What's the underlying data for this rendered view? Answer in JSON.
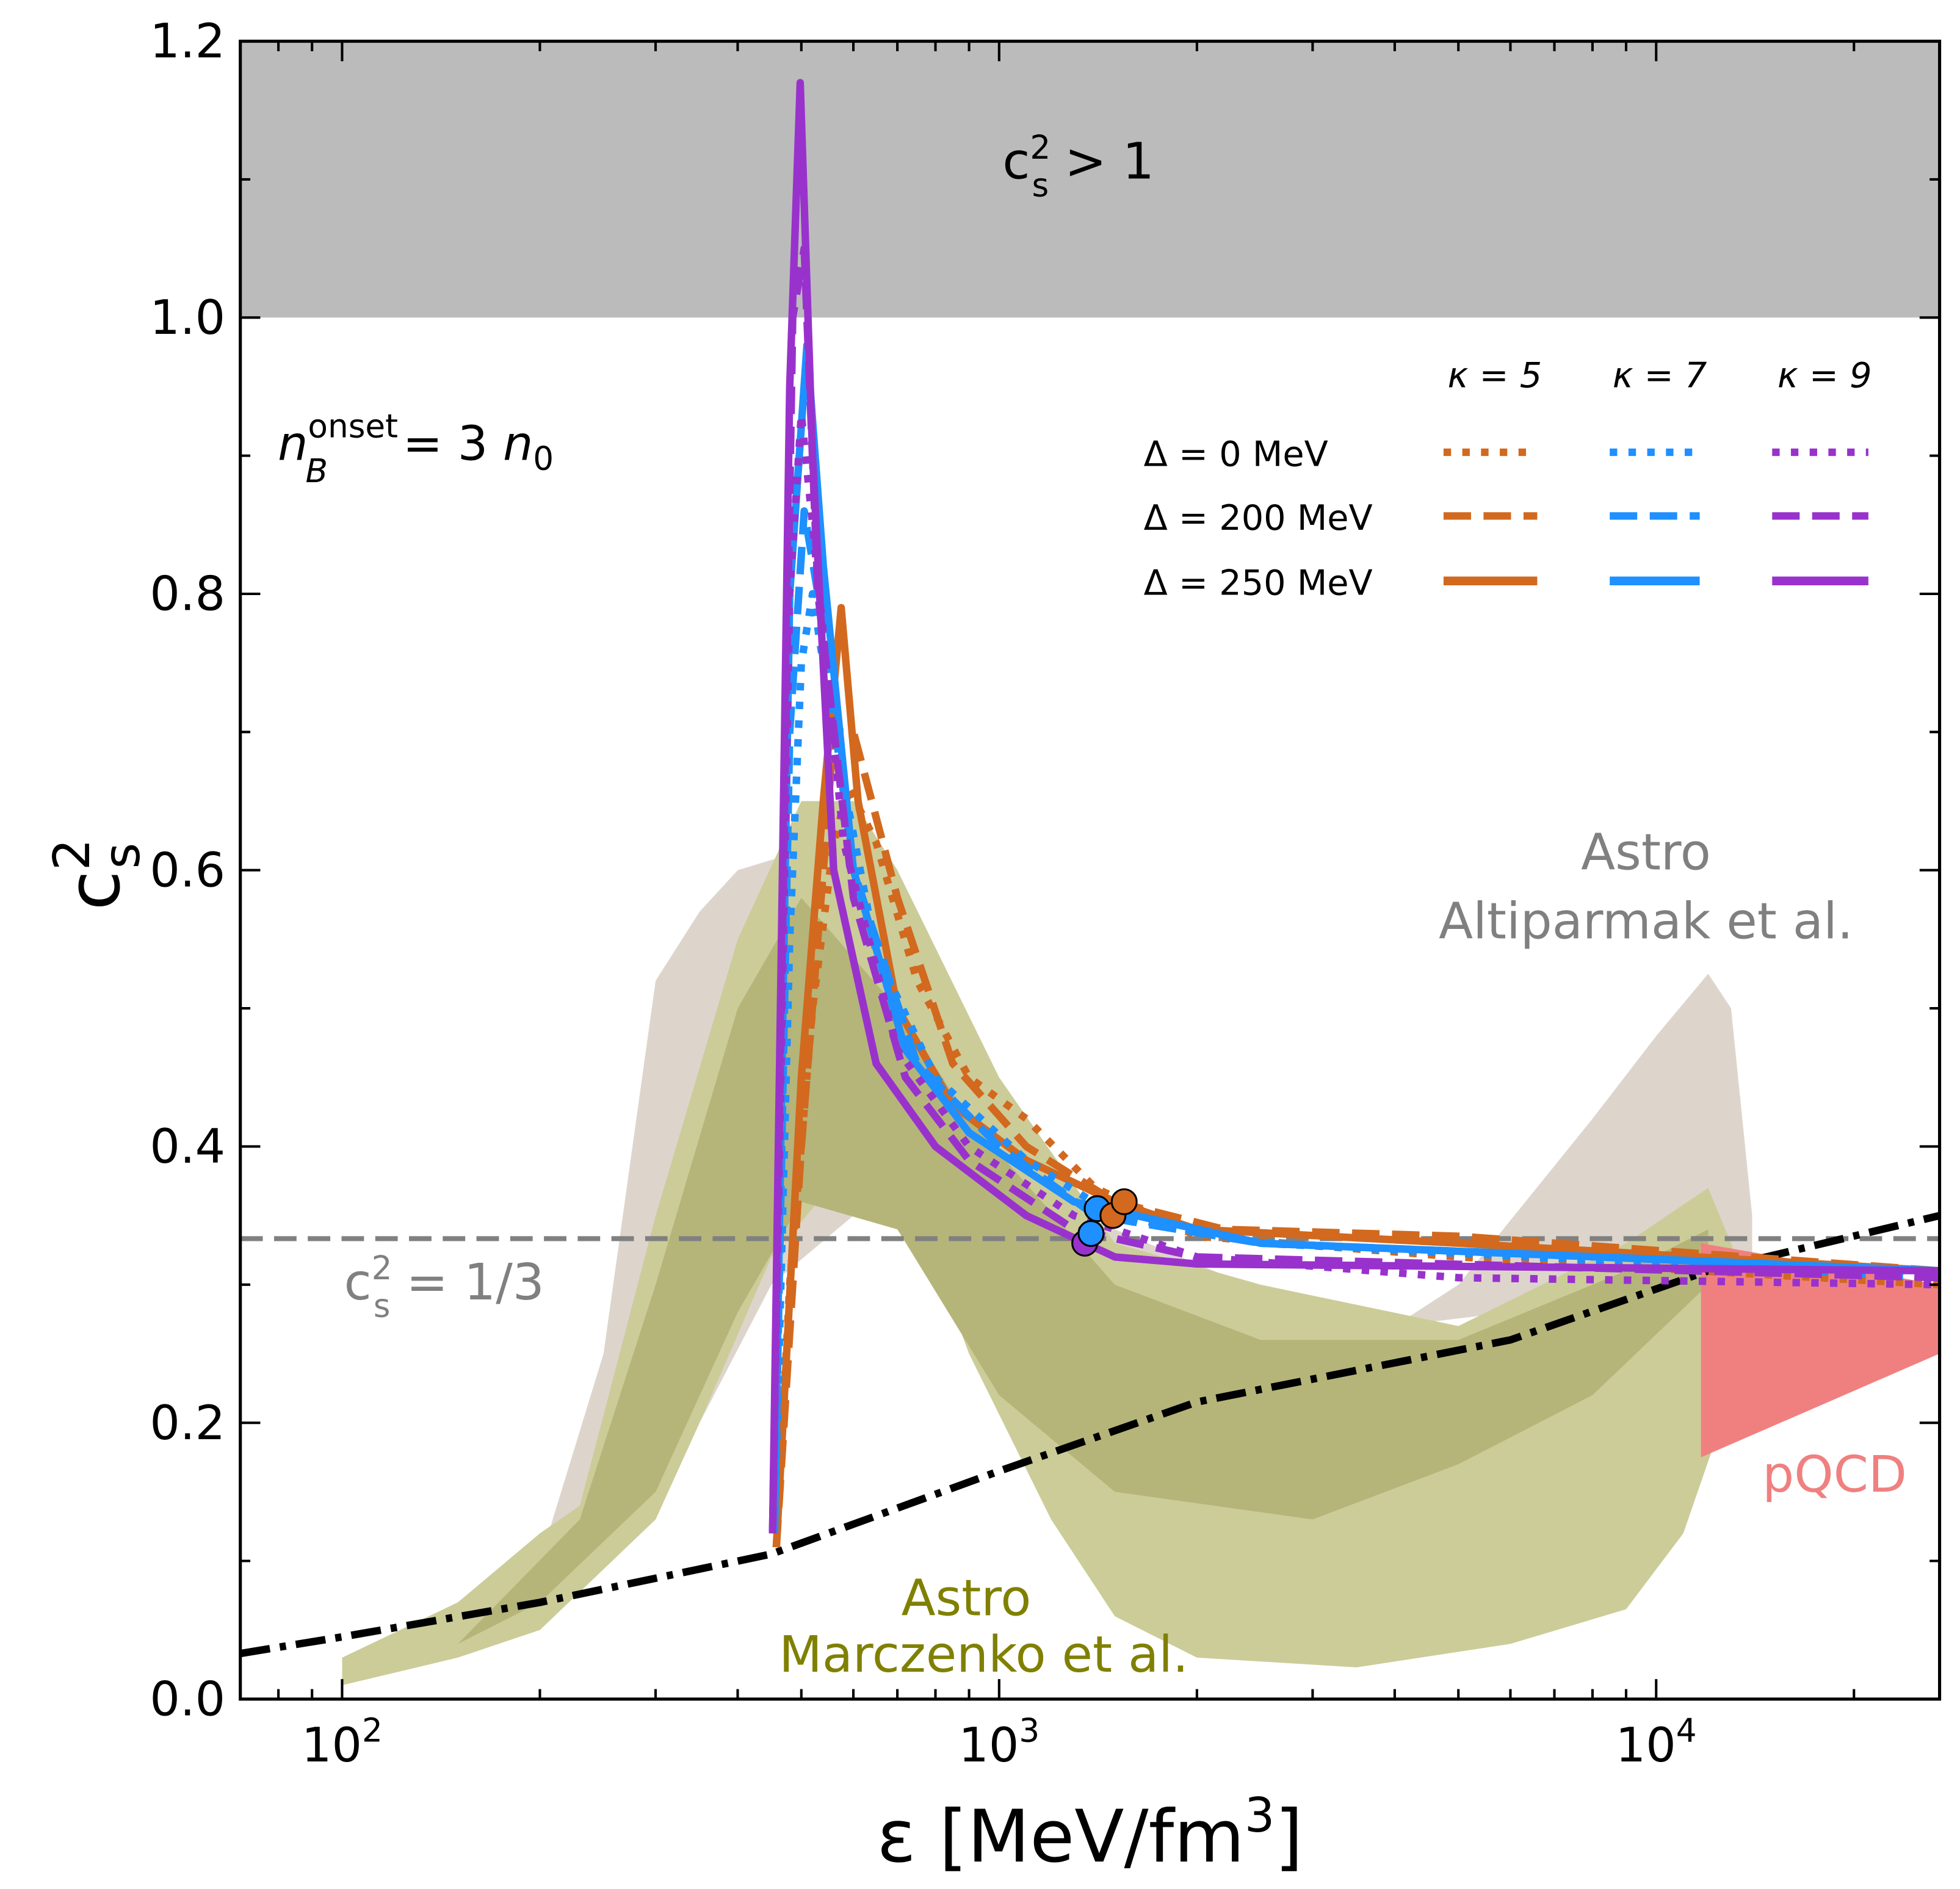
{
  "chart_data": {
    "type": "line",
    "xlabel": "ε [MeV/fm",
    "xlabel_sup": "3",
    "xlabel_end": "]",
    "ylabel": "c",
    "ylabel_sup": "2",
    "ylabel_sub": "s",
    "xscale": "log",
    "xlim": [
      70,
      27000
    ],
    "ylim": [
      0.0,
      1.2
    ],
    "grid": false,
    "x_ticks": [
      {
        "v": 100,
        "base": "10",
        "exp": "2"
      },
      {
        "v": 1000,
        "base": "10",
        "exp": "3"
      },
      {
        "v": 10000,
        "base": "10",
        "exp": "4"
      }
    ],
    "y_ticks": [
      {
        "v": 0,
        "label": "0.0"
      },
      {
        "v": 0.2,
        "label": "0.2"
      },
      {
        "v": 0.4,
        "label": "0.4"
      },
      {
        "v": 0.6,
        "label": "0.6"
      },
      {
        "v": 0.8,
        "label": "0.8"
      },
      {
        "v": 1.0,
        "label": "1.0"
      },
      {
        "v": 1.2,
        "label": "1.2"
      }
    ],
    "annotations": {
      "causal": {
        "c": "c",
        "sup": "2",
        "sub": "s",
        "rest": " > 1"
      },
      "conformal": {
        "c": "c",
        "sup": "2",
        "sub": "s",
        "rest": " = 1/3"
      },
      "onset": {
        "n": "n",
        "sub": "B",
        "sup": "onset",
        "rest": "=  3 ",
        "n0": "n",
        "n0sub": "0"
      },
      "altiparmak": [
        "Astro",
        "Altiparmak et al."
      ],
      "marczenko": [
        "Astro",
        "Marczenko et al."
      ],
      "pqcd": "pQCD"
    },
    "colors": {
      "k5": "#d2691e",
      "k7": "#1e90ff",
      "k9": "#9932cc",
      "altiparmak": "#ddd5cc",
      "marczenko_outer": "#cccc99",
      "marczenko_inner": "#b5b57a",
      "pqcd": "#f08080",
      "marczenko_text": "#808000",
      "gray": "#808080",
      "causal_band": "#bbbbbb"
    },
    "legend": {
      "placement": "top-right",
      "columns": [
        "κ = 5",
        "κ = 7",
        "κ = 9"
      ],
      "rows": [
        "Δ = 0 MeV",
        "Δ = 200 MeV",
        "Δ = 250 MeV"
      ]
    },
    "series": [
      {
        "kappa": 5,
        "delta": 0,
        "style": "dotted",
        "color": "#d2691e",
        "points": [
          [
            458,
            0.11
          ],
          [
            480,
            0.3
          ],
          [
            520,
            0.5
          ],
          [
            560,
            0.62
          ],
          [
            590,
            0.66
          ],
          [
            650,
            0.62
          ],
          [
            750,
            0.52
          ],
          [
            900,
            0.45
          ],
          [
            1100,
            0.42
          ],
          [
            1400,
            0.37
          ],
          [
            2000,
            0.335
          ],
          [
            5000,
            0.32
          ],
          [
            27000,
            0.3
          ]
        ]
      },
      {
        "kappa": 5,
        "delta": 200,
        "style": "dashed",
        "color": "#d2691e",
        "points": [
          [
            458,
            0.11
          ],
          [
            500,
            0.4
          ],
          [
            540,
            0.6
          ],
          [
            560,
            0.7
          ],
          [
            600,
            0.7
          ],
          [
            700,
            0.58
          ],
          [
            850,
            0.46
          ],
          [
            1100,
            0.4
          ],
          [
            1500,
            0.36
          ],
          [
            2200,
            0.34
          ],
          [
            5000,
            0.335
          ],
          [
            27000,
            0.31
          ]
        ]
      },
      {
        "kappa": 5,
        "delta": 250,
        "style": "solid",
        "color": "#d2691e",
        "points": [
          [
            458,
            0.11
          ],
          [
            500,
            0.45
          ],
          [
            540,
            0.65
          ],
          [
            575,
            0.79
          ],
          [
            610,
            0.65
          ],
          [
            700,
            0.5
          ],
          [
            850,
            0.43
          ],
          [
            1100,
            0.39
          ],
          [
            1500,
            0.36
          ],
          [
            2000,
            0.34
          ],
          [
            5000,
            0.33
          ],
          [
            27000,
            0.31
          ]
        ]
      },
      {
        "kappa": 7,
        "delta": 0,
        "style": "dotted",
        "color": "#1e90ff",
        "points": [
          [
            455,
            0.12
          ],
          [
            480,
            0.55
          ],
          [
            500,
            0.75
          ],
          [
            520,
            0.8
          ],
          [
            560,
            0.7
          ],
          [
            650,
            0.54
          ],
          [
            800,
            0.45
          ],
          [
            1100,
            0.39
          ],
          [
            1500,
            0.35
          ],
          [
            2500,
            0.33
          ],
          [
            27000,
            0.305
          ]
        ]
      },
      {
        "kappa": 7,
        "delta": 200,
        "style": "dashed",
        "color": "#1e90ff",
        "points": [
          [
            455,
            0.12
          ],
          [
            480,
            0.7
          ],
          [
            505,
            0.86
          ],
          [
            530,
            0.8
          ],
          [
            600,
            0.6
          ],
          [
            750,
            0.46
          ],
          [
            1000,
            0.4
          ],
          [
            1400,
            0.35
          ],
          [
            2500,
            0.33
          ],
          [
            27000,
            0.31
          ]
        ]
      },
      {
        "kappa": 7,
        "delta": 250,
        "style": "solid",
        "color": "#1e90ff",
        "points": [
          [
            455,
            0.12
          ],
          [
            480,
            0.8
          ],
          [
            510,
            0.98
          ],
          [
            540,
            0.82
          ],
          [
            600,
            0.6
          ],
          [
            720,
            0.47
          ],
          [
            900,
            0.41
          ],
          [
            1300,
            0.36
          ],
          [
            2500,
            0.33
          ],
          [
            27000,
            0.31
          ]
        ]
      },
      {
        "kappa": 9,
        "delta": 0,
        "style": "dotted",
        "color": "#9932cc",
        "points": [
          [
            452,
            0.12
          ],
          [
            480,
            0.8
          ],
          [
            500,
            0.93
          ],
          [
            520,
            0.85
          ],
          [
            580,
            0.62
          ],
          [
            700,
            0.47
          ],
          [
            900,
            0.4
          ],
          [
            1300,
            0.35
          ],
          [
            2000,
            0.32
          ],
          [
            5000,
            0.305
          ],
          [
            27000,
            0.3
          ]
        ]
      },
      {
        "kappa": 9,
        "delta": 200,
        "style": "dashed",
        "color": "#9932cc",
        "points": [
          [
            452,
            0.12
          ],
          [
            485,
            1.0
          ],
          [
            505,
            1.05
          ],
          [
            530,
            0.8
          ],
          [
            600,
            0.58
          ],
          [
            720,
            0.45
          ],
          [
            900,
            0.39
          ],
          [
            1300,
            0.34
          ],
          [
            2000,
            0.32
          ],
          [
            27000,
            0.305
          ]
        ]
      },
      {
        "kappa": 9,
        "delta": 250,
        "style": "solid",
        "color": "#9932cc",
        "points": [
          [
            452,
            0.12
          ],
          [
            480,
            0.95
          ],
          [
            498,
            1.17
          ],
          [
            520,
            0.9
          ],
          [
            560,
            0.6
          ],
          [
            650,
            0.46
          ],
          [
            800,
            0.4
          ],
          [
            1100,
            0.35
          ],
          [
            1500,
            0.32
          ],
          [
            2000,
            0.315
          ],
          [
            27000,
            0.31
          ]
        ]
      }
    ],
    "markers": [
      {
        "x": 1350,
        "y": 0.33,
        "color": "#9932cc"
      },
      {
        "x": 1380,
        "y": 0.337,
        "color": "#1e90ff"
      },
      {
        "x": 1410,
        "y": 0.355,
        "color": "#1e90ff"
      },
      {
        "x": 1490,
        "y": 0.35,
        "color": "#d2691e"
      },
      {
        "x": 1550,
        "y": 0.36,
        "color": "#d2691e"
      }
    ],
    "reference_curve": {
      "style": "dash-dot",
      "color": "#000000",
      "points": [
        [
          70,
          0.033
        ],
        [
          100,
          0.045
        ],
        [
          200,
          0.07
        ],
        [
          450,
          0.105
        ],
        [
          1000,
          0.165
        ],
        [
          2000,
          0.215
        ],
        [
          6000,
          0.26
        ],
        [
          12000,
          0.31
        ],
        [
          27000,
          0.35
        ]
      ]
    },
    "conformal_limit": 0.3333,
    "causal_limit": 1.0,
    "bands": {
      "altiparmak": [
        [
          200,
          0.1
        ],
        [
          250,
          0.25
        ],
        [
          300,
          0.52
        ],
        [
          350,
          0.57
        ],
        [
          400,
          0.6
        ],
        [
          550,
          0.62
        ],
        [
          650,
          0.6
        ],
        [
          700,
          0.55
        ],
        [
          900,
          0.4
        ],
        [
          1500,
          0.34
        ],
        [
          3000,
          0.28
        ],
        [
          4000,
          0.27
        ],
        [
          5000,
          0.3
        ],
        [
          8000,
          0.42
        ],
        [
          10000,
          0.48
        ],
        [
          12000,
          0.525
        ],
        [
          13000,
          0.5
        ],
        [
          14000,
          0.35
        ],
        [
          14000,
          0.3
        ],
        [
          10000,
          0.3
        ],
        [
          6000,
          0.28
        ],
        [
          4000,
          0.27
        ],
        [
          2000,
          0.3
        ],
        [
          1000,
          0.32
        ],
        [
          600,
          0.35
        ],
        [
          450,
          0.3
        ],
        [
          350,
          0.2
        ],
        [
          250,
          0.1
        ],
        [
          200,
          0.05
        ]
      ],
      "marczenko_outer": [
        [
          100,
          0.03
        ],
        [
          150,
          0.07
        ],
        [
          200,
          0.12
        ],
        [
          230,
          0.14
        ],
        [
          300,
          0.35
        ],
        [
          400,
          0.55
        ],
        [
          500,
          0.65
        ],
        [
          600,
          0.65
        ],
        [
          700,
          0.6
        ],
        [
          1000,
          0.45
        ],
        [
          1500,
          0.33
        ],
        [
          2500,
          0.3
        ],
        [
          5000,
          0.27
        ],
        [
          9000,
          0.33
        ],
        [
          12000,
          0.37
        ],
        [
          13000,
          0.33
        ],
        [
          14000,
          0.28
        ],
        [
          13000,
          0.22
        ],
        [
          11000,
          0.12
        ],
        [
          9000,
          0.065
        ],
        [
          6000,
          0.04
        ],
        [
          3500,
          0.023
        ],
        [
          2000,
          0.03
        ],
        [
          1500,
          0.06
        ],
        [
          1200,
          0.13
        ],
        [
          900,
          0.25
        ],
        [
          700,
          0.39
        ],
        [
          600,
          0.39
        ],
        [
          450,
          0.32
        ],
        [
          350,
          0.2
        ],
        [
          300,
          0.13
        ],
        [
          200,
          0.05
        ],
        [
          150,
          0.03
        ],
        [
          100,
          0.01
        ]
      ],
      "marczenko_inner": [
        [
          150,
          0.04
        ],
        [
          230,
          0.13
        ],
        [
          300,
          0.3
        ],
        [
          400,
          0.5
        ],
        [
          500,
          0.58
        ],
        [
          700,
          0.5
        ],
        [
          900,
          0.42
        ],
        [
          1500,
          0.3
        ],
        [
          2500,
          0.26
        ],
        [
          5000,
          0.26
        ],
        [
          9000,
          0.31
        ],
        [
          12000,
          0.34
        ],
        [
          12000,
          0.3
        ],
        [
          8000,
          0.22
        ],
        [
          5000,
          0.17
        ],
        [
          3000,
          0.13
        ],
        [
          1500,
          0.15
        ],
        [
          1000,
          0.22
        ],
        [
          700,
          0.34
        ],
        [
          500,
          0.36
        ],
        [
          400,
          0.28
        ],
        [
          300,
          0.15
        ],
        [
          200,
          0.07
        ],
        [
          150,
          0.04
        ]
      ],
      "pqcd": [
        [
          11700,
          0.33
        ],
        [
          27000,
          0.3
        ],
        [
          27000,
          0.25
        ],
        [
          11700,
          0.175
        ]
      ]
    }
  }
}
